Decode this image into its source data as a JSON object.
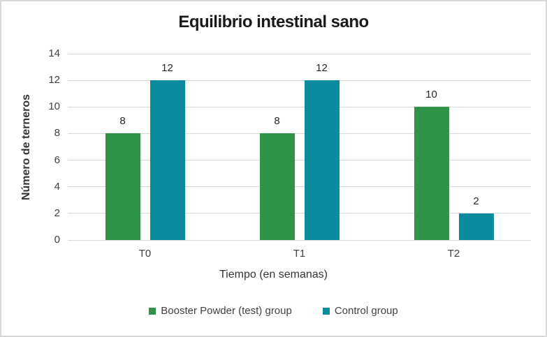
{
  "frame": {
    "border_color": "#d9d9d9",
    "background": "#ffffff"
  },
  "chart_data": {
    "type": "bar",
    "title": "Equilibrio intestinal sano",
    "xlabel": "Tiempo (en semanas)",
    "ylabel": "Número de terneros",
    "categories": [
      "T0",
      "T1",
      "T2"
    ],
    "series": [
      {
        "name": "Booster Powder (test) group",
        "color": "#2f9447",
        "values": [
          8,
          8,
          10
        ]
      },
      {
        "name": "Control group",
        "color": "#0a8b9e",
        "values": [
          12,
          12,
          2
        ]
      }
    ],
    "ylim": [
      0,
      14
    ],
    "ytick_step": 2,
    "yticks": [
      0,
      2,
      4,
      6,
      8,
      10,
      12,
      14
    ],
    "grid": true,
    "gridline_color": "#d9d9d9",
    "axis_text_color": "#404040",
    "data_labels": true,
    "legend_position": "bottom"
  }
}
